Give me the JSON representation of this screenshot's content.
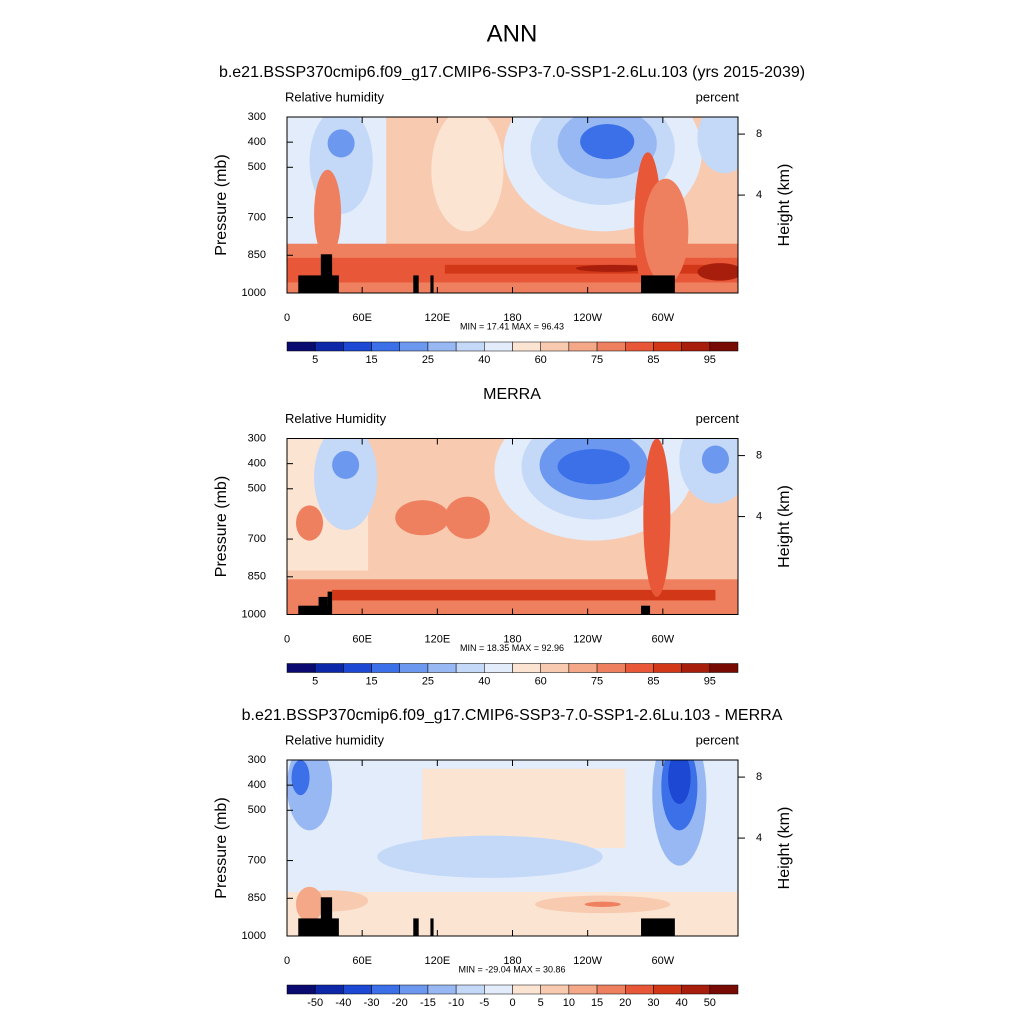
{
  "figure_title": "ANN",
  "chart_data": [
    {
      "type": "contour",
      "title": "b.e21.BSSP370cmip6.f09_g17.CMIP6-SSP3-7.0-SSP1-2.6Lu.103 (yrs 2015-2039)",
      "left_label": "Relative humidity",
      "right_label": "percent",
      "stats": "MIN =  17.41  MAX =  96.43",
      "ylabel": "Pressure (mb)",
      "y2label": "Height (km)",
      "xlim": [
        0,
        360
      ],
      "xticks": [
        0,
        {
          "value": 60,
          "label": "60E"
        },
        {
          "value": 120,
          "label": "120E"
        },
        180,
        {
          "value": 240,
          "label": "120W"
        },
        {
          "value": 300,
          "label": "60W"
        }
      ],
      "ylim": [
        1000,
        300
      ],
      "yticks": [
        300,
        400,
        500,
        700,
        850,
        1000
      ],
      "y2ticks": [
        4,
        8
      ],
      "colorbar": {
        "labels": [
          5,
          15,
          25,
          40,
          60,
          75,
          85,
          95
        ],
        "colors": [
          "#0a0a70",
          "#0c28a8",
          "#1c48d4",
          "#3c70e8",
          "#6c98f0",
          "#98b8f4",
          "#c4d8f8",
          "#e2ecfa",
          "#fbe4d2",
          "#f8cab0",
          "#f4a888",
          "#ee8060",
          "#e85838",
          "#d23818",
          "#a81e0c",
          "#780a04"
        ]
      }
    },
    {
      "type": "contour",
      "title": "MERRA",
      "left_label": "Relative Humidity",
      "right_label": "percent",
      "stats": "MIN =  18.35  MAX =  92.96",
      "ylabel": "Pressure (mb)",
      "y2label": "Height (km)",
      "xlim": [
        0,
        360
      ],
      "xticks": [
        0,
        {
          "value": 60,
          "label": "60E"
        },
        {
          "value": 120,
          "label": "120E"
        },
        180,
        {
          "value": 240,
          "label": "120W"
        },
        {
          "value": 300,
          "label": "60W"
        }
      ],
      "ylim": [
        1000,
        300
      ],
      "yticks": [
        300,
        400,
        500,
        700,
        850,
        1000
      ],
      "y2ticks": [
        4,
        8
      ],
      "colorbar": {
        "labels": [
          5,
          15,
          25,
          40,
          60,
          75,
          85,
          95
        ],
        "colors": [
          "#0a0a70",
          "#0c28a8",
          "#1c48d4",
          "#3c70e8",
          "#6c98f0",
          "#98b8f4",
          "#c4d8f8",
          "#e2ecfa",
          "#fbe4d2",
          "#f8cab0",
          "#f4a888",
          "#ee8060",
          "#e85838",
          "#d23818",
          "#a81e0c",
          "#780a04"
        ]
      }
    },
    {
      "type": "contour",
      "title": "b.e21.BSSP370cmip6.f09_g17.CMIP6-SSP3-7.0-SSP1-2.6Lu.103 - MERRA",
      "left_label": "Relative humidity",
      "right_label": "percent",
      "stats": "MIN = -29.04  MAX =  30.86",
      "ylabel": "Pressure (mb)",
      "y2label": "Height (km)",
      "xlim": [
        0,
        360
      ],
      "xticks": [
        0,
        {
          "value": 60,
          "label": "60E"
        },
        {
          "value": 120,
          "label": "120E"
        },
        180,
        {
          "value": 240,
          "label": "120W"
        },
        {
          "value": 300,
          "label": "60W"
        }
      ],
      "ylim": [
        1000,
        300
      ],
      "yticks": [
        300,
        400,
        500,
        700,
        850,
        1000
      ],
      "y2ticks": [
        4,
        8
      ],
      "colorbar": {
        "labels": [
          -50,
          -40,
          -30,
          -20,
          -15,
          -10,
          -5,
          0,
          5,
          10,
          15,
          20,
          30,
          40,
          50
        ],
        "colors": [
          "#0a0a70",
          "#0c28a8",
          "#1c48d4",
          "#3c70e8",
          "#6c98f0",
          "#98b8f4",
          "#c4d8f8",
          "#e2ecfa",
          "#fbe4d2",
          "#f8cab0",
          "#f4a888",
          "#ee8060",
          "#e85838",
          "#d23818",
          "#a81e0c",
          "#780a04"
        ]
      }
    }
  ]
}
